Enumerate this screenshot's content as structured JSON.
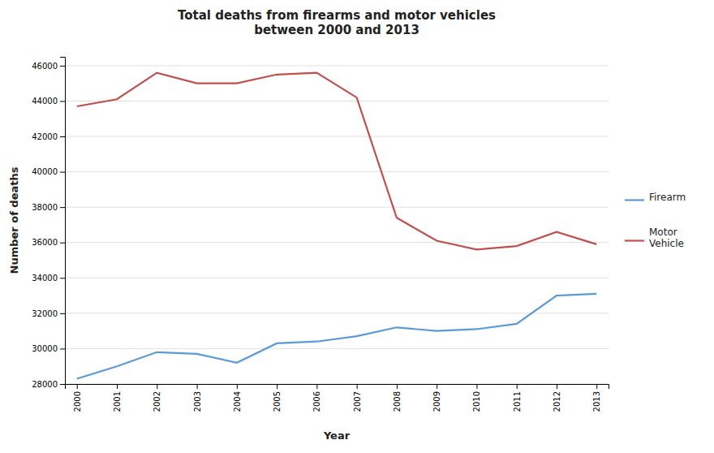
{
  "chart_data": {
    "type": "line",
    "title": "Total deaths from firearms and motor vehicles\nbetween 2000 and 2013",
    "x_label": "Year",
    "y_label": "Number of deaths",
    "x": [
      2000,
      2001,
      2002,
      2003,
      2004,
      2005,
      2006,
      2007,
      2008,
      2009,
      2010,
      2011,
      2012,
      2013
    ],
    "xlim": [
      1999.7,
      2013.3
    ],
    "xticks": [
      2000,
      2001,
      2002,
      2003,
      2004,
      2005,
      2006,
      2007,
      2008,
      2009,
      2010,
      2011,
      2012,
      2013
    ],
    "ylim": [
      28000,
      46500
    ],
    "yticks": [
      28000,
      30000,
      32000,
      34000,
      36000,
      38000,
      40000,
      42000,
      44000,
      46000
    ],
    "grid": true,
    "legend": "right",
    "series": [
      {
        "name": "Firearm",
        "color": "#5b9bd5",
        "values": [
          28300,
          29000,
          29800,
          29700,
          29200,
          30300,
          30400,
          30700,
          31200,
          31000,
          31100,
          31400,
          33000,
          33100
        ]
      },
      {
        "name": "Motor\nVehicle",
        "color": "#c0504d",
        "values": [
          43700,
          44100,
          45600,
          45000,
          45000,
          45500,
          45600,
          44200,
          37400,
          36100,
          35600,
          35800,
          36600,
          35900
        ]
      }
    ]
  }
}
